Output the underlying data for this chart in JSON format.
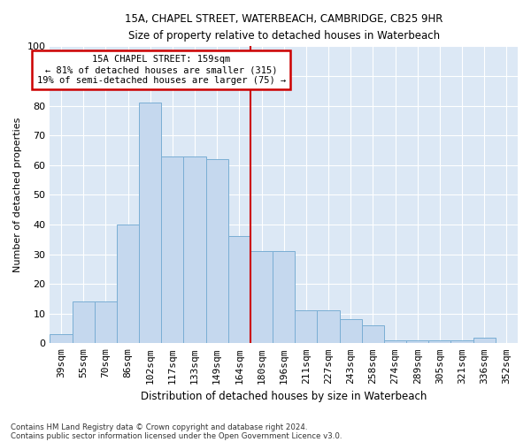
{
  "title1": "15A, CHAPEL STREET, WATERBEACH, CAMBRIDGE, CB25 9HR",
  "title2": "Size of property relative to detached houses in Waterbeach",
  "xlabel": "Distribution of detached houses by size in Waterbeach",
  "ylabel": "Number of detached properties",
  "categories": [
    "39sqm",
    "55sqm",
    "70sqm",
    "86sqm",
    "102sqm",
    "117sqm",
    "133sqm",
    "149sqm",
    "164sqm",
    "180sqm",
    "196sqm",
    "211sqm",
    "227sqm",
    "243sqm",
    "258sqm",
    "274sqm",
    "289sqm",
    "305sqm",
    "321sqm",
    "336sqm",
    "352sqm"
  ],
  "values": [
    3,
    14,
    14,
    40,
    81,
    63,
    63,
    62,
    36,
    31,
    31,
    11,
    11,
    8,
    6,
    1,
    1,
    1,
    1,
    2,
    0
  ],
  "bar_color": "#c5d8ee",
  "bar_edge_color": "#7aaed4",
  "property_line_x": 8.5,
  "annotation_text": "15A CHAPEL STREET: 159sqm\n← 81% of detached houses are smaller (315)\n19% of semi-detached houses are larger (75) →",
  "annotation_box_color": "#ffffff",
  "annotation_box_edge": "#cc0000",
  "line_color": "#cc0000",
  "background_color": "#dce8f5",
  "ylim": [
    0,
    100
  ],
  "footnote1": "Contains HM Land Registry data © Crown copyright and database right 2024.",
  "footnote2": "Contains public sector information licensed under the Open Government Licence v3.0."
}
